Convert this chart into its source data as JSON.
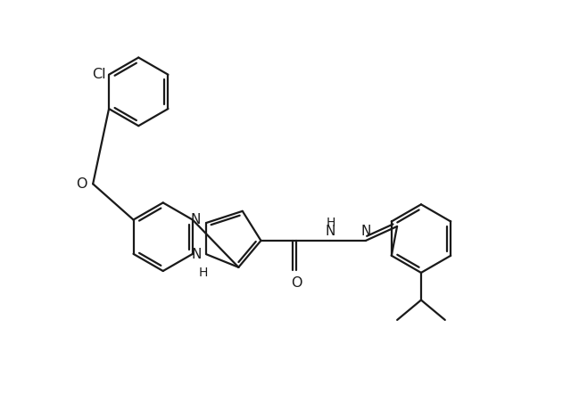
{
  "background_color": "#ffffff",
  "line_color": "#1a1a1a",
  "line_width": 1.6,
  "figsize": [
    6.4,
    4.42
  ],
  "dpi": 100,
  "xlim": [
    0,
    10
  ],
  "ylim": [
    0,
    6.9
  ]
}
